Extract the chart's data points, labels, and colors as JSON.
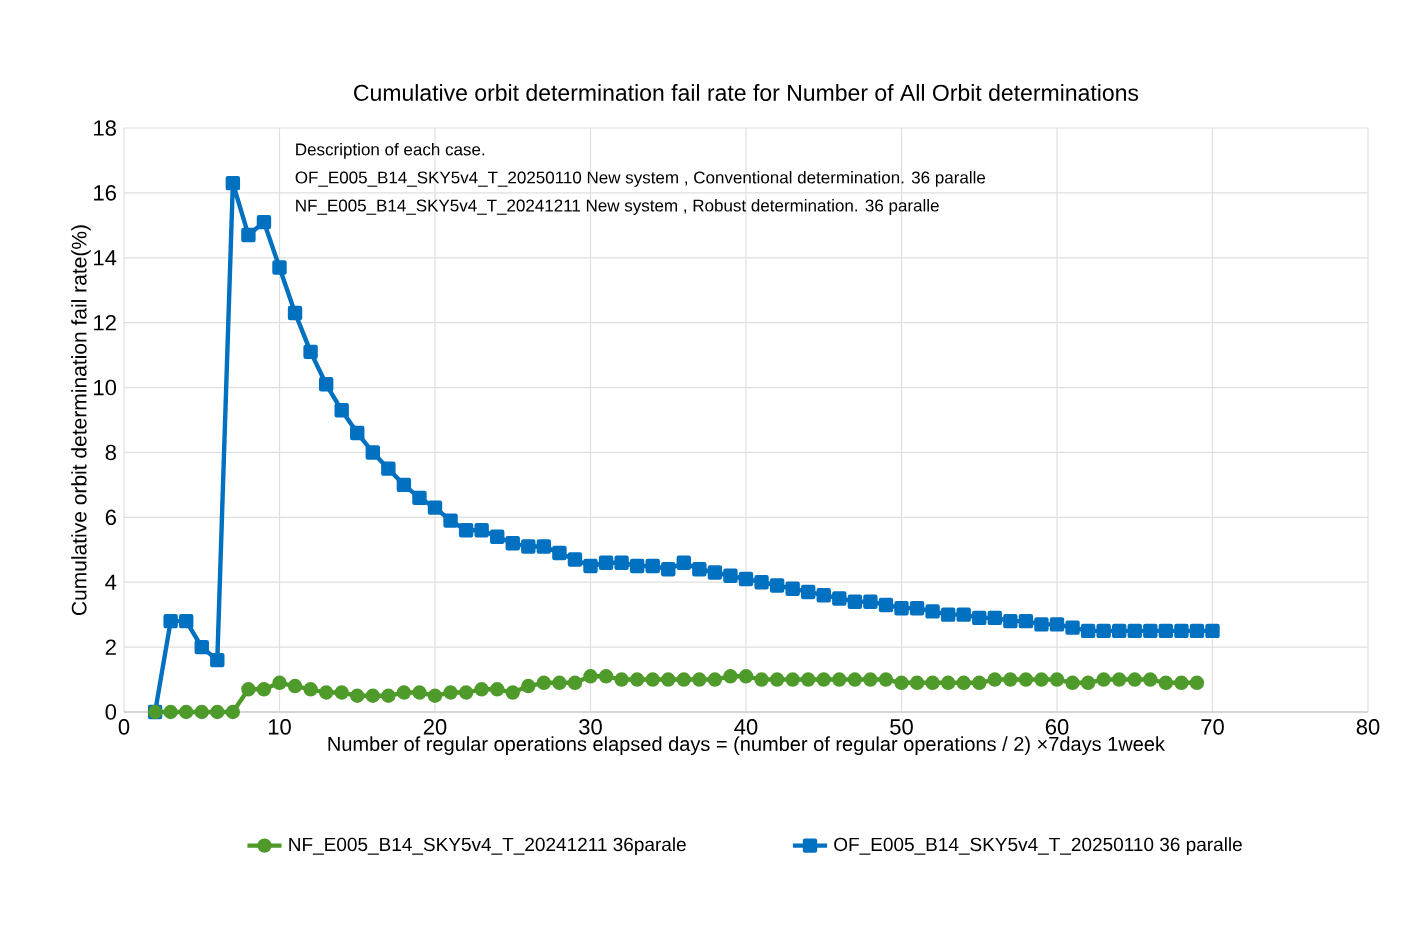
{
  "chart_data": {
    "type": "line",
    "title": "Cumulative orbit determination  fail rate for Number of All Orbit determinations",
    "xlabel": "Number of regular operations elapsed days = (number of regular operations / 2)  ×7days 1week",
    "ylabel": "Cumulative orbit determination  fail rate(%)",
    "annotations": [
      "Description of each case.",
      "OF_E005_B14_SKY5v4_T_20250110  New system ,  Conventional determination. 36 paralle",
      "NF_E005_B14_SKY5v4_T_20241211  New system  , Robust determination. 36 paralle"
    ],
    "xlim": [
      0,
      80
    ],
    "xticks": [
      0,
      10,
      20,
      30,
      40,
      50,
      60,
      70,
      80
    ],
    "ylim": [
      0,
      18
    ],
    "yticks": [
      0,
      2,
      4,
      6,
      8,
      10,
      12,
      14,
      16,
      18
    ],
    "grid": true,
    "legend": "bottom",
    "series": [
      {
        "name": "NF_E005_B14_SKY5v4_T_20241211 36parale",
        "color": "#4e9a2a",
        "marker": "circle",
        "x": [
          2,
          3,
          4,
          5,
          6,
          7,
          8,
          9,
          10,
          11,
          12,
          13,
          14,
          15,
          16,
          17,
          18,
          19,
          20,
          21,
          22,
          23,
          24,
          25,
          26,
          27,
          28,
          29,
          30,
          31,
          32,
          33,
          34,
          35,
          36,
          37,
          38,
          39,
          40,
          41,
          42,
          43,
          44,
          45,
          46,
          47,
          48,
          49,
          50,
          51,
          52,
          53,
          54,
          55,
          56,
          57,
          58,
          59,
          60,
          61,
          62,
          63,
          64,
          65,
          66,
          67,
          68,
          69
        ],
        "values": [
          0,
          0,
          0,
          0,
          0,
          0,
          0.7,
          0.7,
          0.9,
          0.8,
          0.7,
          0.6,
          0.6,
          0.5,
          0.5,
          0.5,
          0.6,
          0.6,
          0.5,
          0.6,
          0.6,
          0.7,
          0.7,
          0.6,
          0.8,
          0.9,
          0.9,
          0.9,
          1.1,
          1.1,
          1.0,
          1.0,
          1.0,
          1.0,
          1.0,
          1.0,
          1.0,
          1.1,
          1.1,
          1.0,
          1.0,
          1.0,
          1.0,
          1.0,
          1.0,
          1.0,
          1.0,
          1.0,
          0.9,
          0.9,
          0.9,
          0.9,
          0.9,
          0.9,
          1.0,
          1.0,
          1.0,
          1.0,
          1.0,
          0.9,
          0.9,
          1.0,
          1.0,
          1.0,
          1.0,
          0.9,
          0.9,
          0.9
        ]
      },
      {
        "name": "OF_E005_B14_SKY5v4_T_20250110 36 paralle",
        "color": "#0070c0",
        "marker": "square",
        "x": [
          2,
          3,
          4,
          5,
          6,
          7,
          8,
          9,
          10,
          11,
          12,
          13,
          14,
          15,
          16,
          17,
          18,
          19,
          20,
          21,
          22,
          23,
          24,
          25,
          26,
          27,
          28,
          29,
          30,
          31,
          32,
          33,
          34,
          35,
          36,
          37,
          38,
          39,
          40,
          41,
          42,
          43,
          44,
          45,
          46,
          47,
          48,
          49,
          50,
          51,
          52,
          53,
          54,
          55,
          56,
          57,
          58,
          59,
          60,
          61,
          62,
          63,
          64,
          65,
          66,
          67,
          68,
          69,
          70
        ],
        "values": [
          0,
          2.8,
          2.8,
          2.0,
          1.6,
          16.3,
          14.7,
          15.1,
          13.7,
          12.3,
          11.1,
          10.1,
          9.3,
          8.6,
          8.0,
          7.5,
          7.0,
          6.6,
          6.3,
          5.9,
          5.6,
          5.6,
          5.4,
          5.2,
          5.1,
          5.1,
          4.9,
          4.7,
          4.5,
          4.6,
          4.6,
          4.5,
          4.5,
          4.4,
          4.6,
          4.4,
          4.3,
          4.2,
          4.1,
          4.0,
          3.9,
          3.8,
          3.7,
          3.6,
          3.5,
          3.4,
          3.4,
          3.3,
          3.2,
          3.2,
          3.1,
          3.0,
          3.0,
          2.9,
          2.9,
          2.8,
          2.8,
          2.7,
          2.7,
          2.6,
          2.5,
          2.5,
          2.5,
          2.5,
          2.5,
          2.5,
          2.5,
          2.5,
          2.5
        ]
      }
    ]
  }
}
